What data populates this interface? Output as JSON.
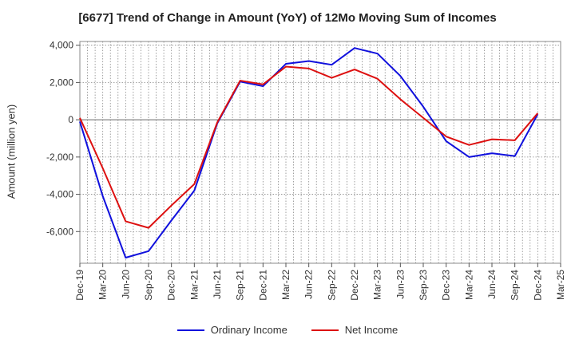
{
  "chart_data": {
    "type": "line",
    "title": "[6677]  Trend of Change in Amount (YoY) of 12Mo Moving Sum of Incomes",
    "xlabel": "",
    "ylabel": "Amount (million yen)",
    "categories": [
      "Dec-19",
      "Mar-20",
      "Jun-20",
      "Sep-20",
      "Dec-20",
      "Mar-21",
      "Jun-21",
      "Sep-21",
      "Dec-21",
      "Mar-22",
      "Jun-22",
      "Sep-22",
      "Dec-22",
      "Mar-23",
      "Jun-23",
      "Sep-23",
      "Dec-23",
      "Mar-24",
      "Jun-24",
      "Sep-24",
      "Dec-24",
      "Mar-25"
    ],
    "y_ticks": [
      4000,
      2000,
      0,
      -2000,
      -4000,
      -6000
    ],
    "y_tick_labels": [
      "4,000",
      "2,000",
      "0",
      "-2,000",
      "-4,000",
      "-6,000"
    ],
    "ylim": [
      -7700,
      4200
    ],
    "grid": true,
    "legend_position": "bottom",
    "series": [
      {
        "name": "Ordinary Income",
        "color": "#1010dd",
        "values": [
          -100,
          -4100,
          -7400,
          -7050,
          -5400,
          -3800,
          -200,
          2050,
          1800,
          3000,
          3150,
          2950,
          3850,
          3550,
          2350,
          700,
          -1150,
          -2000,
          -1800,
          -1950,
          300,
          null
        ]
      },
      {
        "name": "Net Income",
        "color": "#dd1010",
        "values": [
          100,
          -2600,
          -5450,
          -5800,
          -4600,
          -3450,
          -150,
          2100,
          1900,
          2850,
          2750,
          2250,
          2700,
          2200,
          1100,
          100,
          -900,
          -1350,
          -1050,
          -1100,
          350,
          null
        ]
      }
    ]
  }
}
